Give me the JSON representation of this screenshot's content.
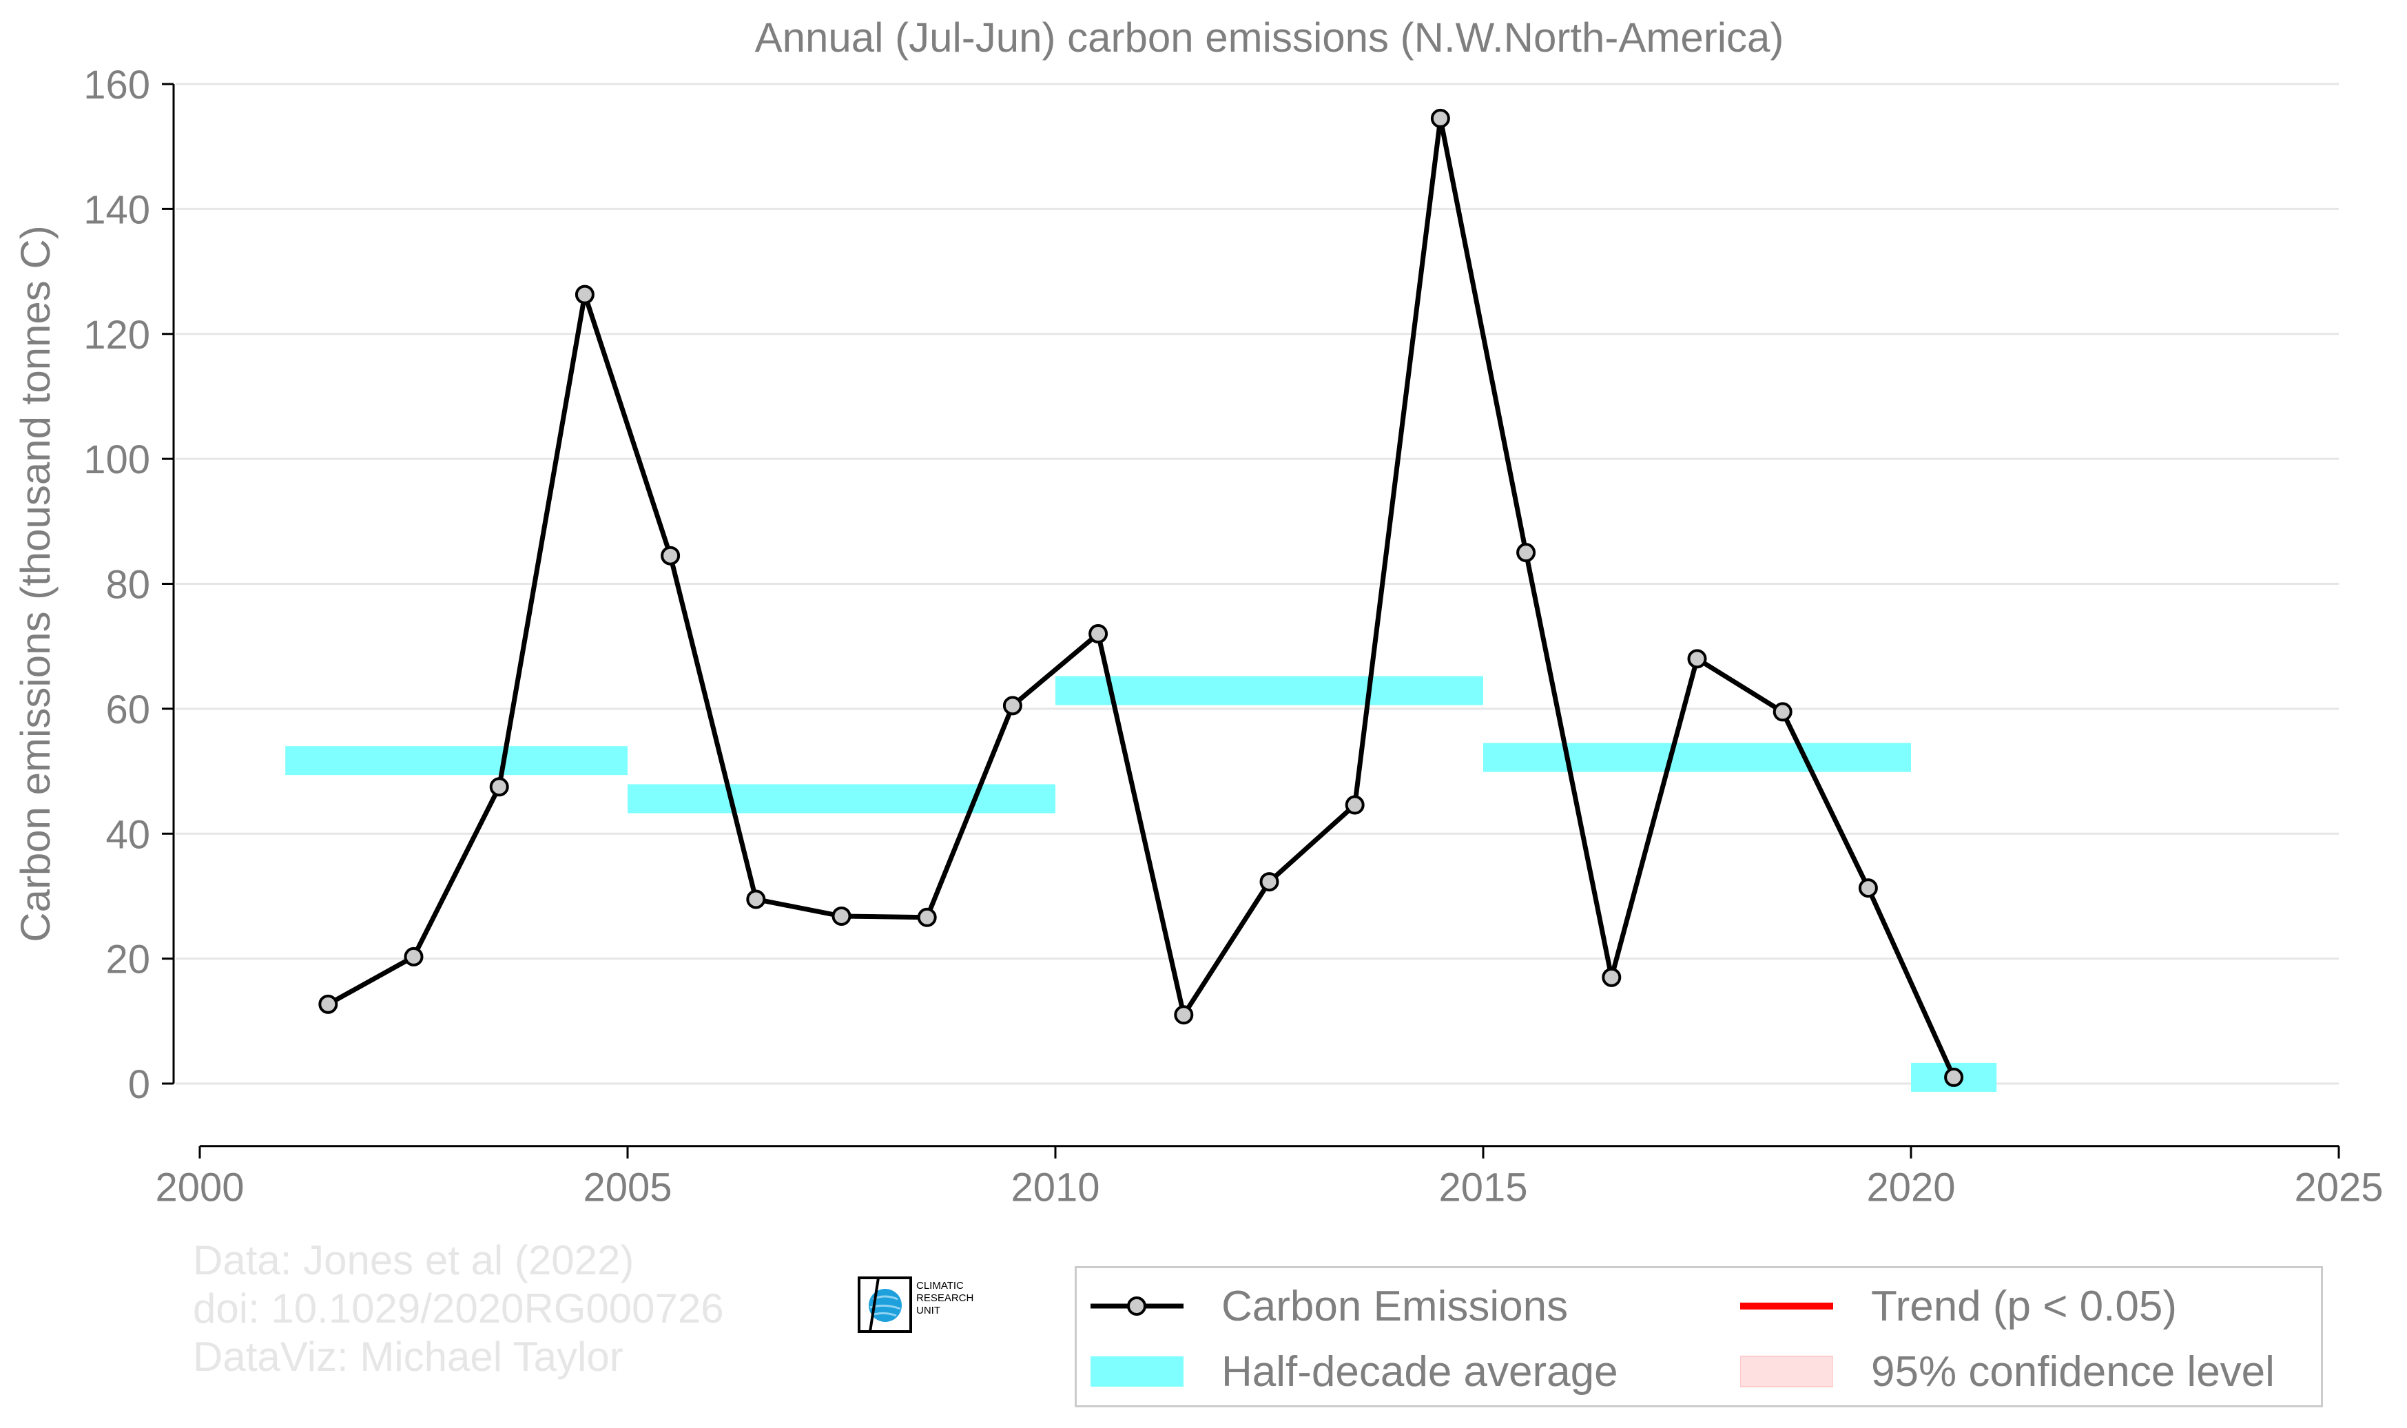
{
  "chart_data": {
    "type": "line",
    "title": "Annual (Jul-Jun) carbon emissions (N.W.North-America)",
    "xlabel": "",
    "ylabel": "Carbon emissions (thousand tonnes C)",
    "xlim": [
      2000,
      2025
    ],
    "ylim": [
      -10,
      160
    ],
    "x_ticks": [
      2000,
      2005,
      2010,
      2015,
      2020,
      2025
    ],
    "y_ticks": [
      0,
      20,
      40,
      60,
      80,
      100,
      120,
      140,
      160
    ],
    "grid": "horizontal",
    "legend_position": "bottom-right",
    "series": [
      {
        "name": "Carbon Emissions",
        "color": "#000000",
        "marker_fill": "#cccccc",
        "x": [
          2001.5,
          2002.5,
          2003.5,
          2004.5,
          2005.5,
          2006.5,
          2007.5,
          2008.5,
          2009.5,
          2010.5,
          2011.5,
          2012.5,
          2013.5,
          2014.5,
          2015.5,
          2016.5,
          2017.5,
          2018.5,
          2019.5,
          2020.5
        ],
        "values": [
          12.7,
          20.3,
          47.5,
          126.3,
          84.5,
          29.5,
          26.8,
          26.6,
          60.5,
          72.0,
          11.0,
          32.3,
          44.6,
          154.5,
          85.0,
          17.0,
          68.0,
          59.5,
          31.3,
          1.0
        ]
      }
    ],
    "half_decade_average": {
      "name": "Half-decade average",
      "color": "#7fffff",
      "segments": [
        {
          "x_start": 2001,
          "x_end": 2005,
          "value": 51.7
        },
        {
          "x_start": 2005,
          "x_end": 2010,
          "value": 45.6
        },
        {
          "x_start": 2010,
          "x_end": 2015,
          "value": 62.9
        },
        {
          "x_start": 2015,
          "x_end": 2020,
          "value": 52.2
        },
        {
          "x_start": 2020,
          "x_end": 2021,
          "value": 1.0
        }
      ]
    },
    "legend": [
      {
        "label": "Carbon Emissions",
        "kind": "line-marker",
        "color": "#000000"
      },
      {
        "label": "Trend (p < 0.05)",
        "kind": "line",
        "color": "#ff0000"
      },
      {
        "label": "Half-decade average",
        "kind": "band",
        "color": "#7fffff"
      },
      {
        "label": "95% confidence level",
        "kind": "band",
        "color": "#ffe0e0"
      }
    ]
  },
  "credits": {
    "line1": "Data: Jones et al (2022)",
    "line2": "doi: 10.1029/2020RG000726",
    "line3": "DataViz: Michael Taylor"
  },
  "logo": {
    "line1": "CLIMATIC",
    "line2": "RESEARCH",
    "line3": "UNIT"
  }
}
